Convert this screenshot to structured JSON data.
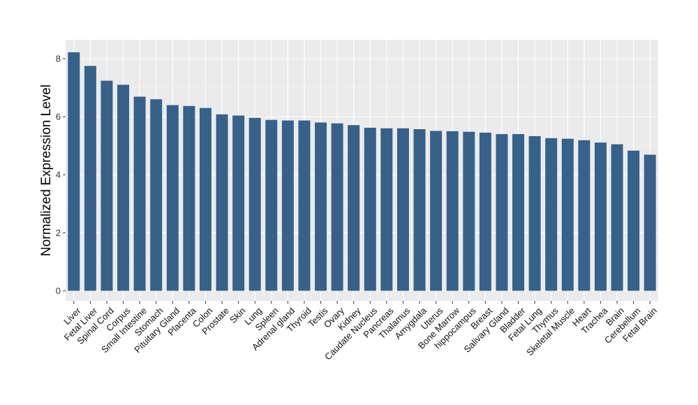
{
  "colors": {
    "bar": "#36618a",
    "panel_background": "#ebebeb",
    "grid_major": "#ffffff",
    "grid_minor": "#f5f5f5",
    "axis_text": "#333333"
  },
  "chart_data": {
    "type": "bar",
    "title": "",
    "xlabel": "",
    "ylabel": "Normalized Expression Level",
    "ylim": [
      -0.35,
      8.65
    ],
    "yticks": [
      0,
      2,
      4,
      6,
      8
    ],
    "grid": true,
    "legend": "none",
    "categories": [
      "Liver",
      "Fetal Liver",
      "Spinal Cord",
      "Corpus",
      "Small Intestine",
      "Stomach",
      "Pituitary Gland",
      "Placenta",
      "Colon",
      "Prostate",
      "Skin",
      "Lung",
      "Spleen",
      "Adrenal gland",
      "Thyroid",
      "Testis",
      "Ovary",
      "Kidney",
      "Caudate Nucleus",
      "Pancreas",
      "Thalamus",
      "Amygdala",
      "Uterus",
      "Bone Marrow",
      "hippocampus",
      "Breast",
      "Salivary Gland",
      "Bladder",
      "Fetal Lung",
      "Thymus",
      "Skeletal Muscle",
      "Heart",
      "Trachea",
      "Brain",
      "Cerebellum",
      "Fetal Brain"
    ],
    "series": [
      {
        "values": [
          8.22,
          7.75,
          7.24,
          7.1,
          6.69,
          6.6,
          6.4,
          6.37,
          6.3,
          6.08,
          6.04,
          5.96,
          5.89,
          5.87,
          5.87,
          5.8,
          5.77,
          5.71,
          5.62,
          5.6,
          5.6,
          5.57,
          5.51,
          5.5,
          5.48,
          5.45,
          5.4,
          5.4,
          5.33,
          5.26,
          5.24,
          5.19,
          5.11,
          5.05,
          4.83,
          4.69
        ]
      }
    ]
  }
}
